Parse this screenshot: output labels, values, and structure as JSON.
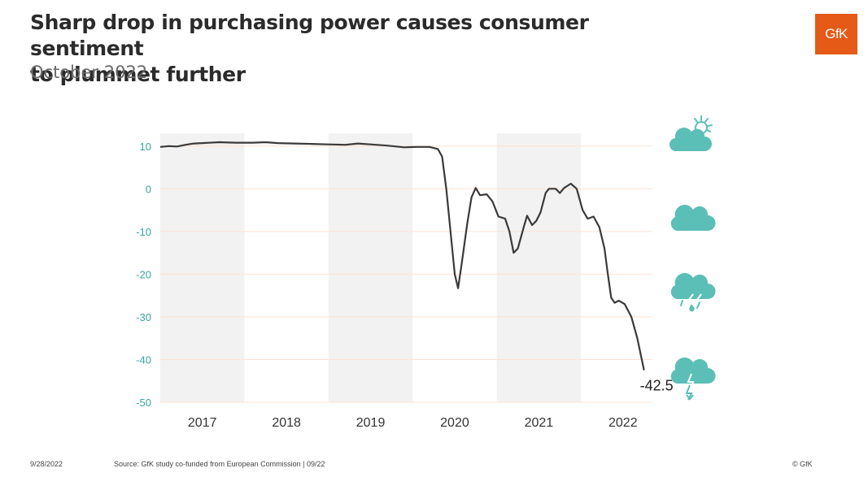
{
  "header": {
    "title_line1": "Sharp drop in purchasing power causes consumer sentiment",
    "title_line2": "to plummet further",
    "subtitle": "October 2022"
  },
  "logo": {
    "text": "GfK",
    "color": "#e55a17"
  },
  "colors": {
    "line": "#3a3a3a",
    "band": "#f2f2f2",
    "ytick": "#3aa5a0",
    "grid": "#fbe3d2",
    "icon": "#5bbfb7"
  },
  "icons": [
    "sun-cloud-icon",
    "cloud-icon",
    "rain-cloud-icon",
    "storm-cloud-icon"
  ],
  "chart_data": {
    "type": "line",
    "title": "",
    "xlabel": "",
    "ylabel": "",
    "ylim": [
      -50,
      13
    ],
    "xlim": [
      2016.5,
      2022.35
    ],
    "yticks": [
      10,
      0,
      -10,
      -20,
      -30,
      -40,
      -50
    ],
    "xticks": [
      {
        "label": "2017",
        "x": 2017.0
      },
      {
        "label": "2018",
        "x": 2018.0
      },
      {
        "label": "2019",
        "x": 2019.0
      },
      {
        "label": "2020",
        "x": 2020.0
      },
      {
        "label": "2021",
        "x": 2021.0
      },
      {
        "label": "2022",
        "x": 2022.0
      }
    ],
    "shaded_years": [
      2017,
      2019,
      2021
    ],
    "grid": "horizontal",
    "end_label": "-42.5",
    "series": [
      {
        "points": [
          [
            2016.5,
            9.8
          ],
          [
            2016.6,
            10.0
          ],
          [
            2016.7,
            9.9
          ],
          [
            2016.8,
            10.3
          ],
          [
            2016.9,
            10.6
          ],
          [
            2017.0,
            10.7
          ],
          [
            2017.2,
            10.9
          ],
          [
            2017.4,
            10.8
          ],
          [
            2017.6,
            10.8
          ],
          [
            2017.75,
            10.9
          ],
          [
            2017.9,
            10.7
          ],
          [
            2018.1,
            10.6
          ],
          [
            2018.3,
            10.5
          ],
          [
            2018.5,
            10.4
          ],
          [
            2018.7,
            10.3
          ],
          [
            2018.85,
            10.6
          ],
          [
            2019.0,
            10.4
          ],
          [
            2019.2,
            10.1
          ],
          [
            2019.4,
            9.7
          ],
          [
            2019.55,
            9.8
          ],
          [
            2019.7,
            9.8
          ],
          [
            2019.8,
            9.3
          ],
          [
            2019.85,
            7.5
          ],
          [
            2019.9,
            0.0
          ],
          [
            2019.95,
            -10.0
          ],
          [
            2020.0,
            -20.0
          ],
          [
            2020.04,
            -23.3
          ],
          [
            2020.08,
            -18.0
          ],
          [
            2020.15,
            -8.0
          ],
          [
            2020.2,
            -2.0
          ],
          [
            2020.25,
            0.2
          ],
          [
            2020.3,
            -1.5
          ],
          [
            2020.38,
            -1.3
          ],
          [
            2020.45,
            -3.0
          ],
          [
            2020.52,
            -6.5
          ],
          [
            2020.6,
            -7.0
          ],
          [
            2020.65,
            -10.0
          ],
          [
            2020.7,
            -15.0
          ],
          [
            2020.75,
            -14.0
          ],
          [
            2020.82,
            -9.0
          ],
          [
            2020.86,
            -6.3
          ],
          [
            2020.92,
            -8.5
          ],
          [
            2020.97,
            -7.5
          ],
          [
            2021.02,
            -5.5
          ],
          [
            2021.08,
            -1.0
          ],
          [
            2021.12,
            0.0
          ],
          [
            2021.2,
            0.0
          ],
          [
            2021.25,
            -1.0
          ],
          [
            2021.3,
            0.2
          ],
          [
            2021.38,
            1.2
          ],
          [
            2021.45,
            0.0
          ],
          [
            2021.52,
            -5.0
          ],
          [
            2021.58,
            -7.0
          ],
          [
            2021.65,
            -6.5
          ],
          [
            2021.72,
            -9.0
          ],
          [
            2021.78,
            -14.0
          ],
          [
            2021.82,
            -20.0
          ],
          [
            2021.86,
            -25.5
          ],
          [
            2021.9,
            -26.7
          ],
          [
            2021.95,
            -26.2
          ],
          [
            2022.02,
            -27.0
          ],
          [
            2022.1,
            -30.0
          ],
          [
            2022.17,
            -35.0
          ],
          [
            2022.25,
            -42.5
          ]
        ]
      }
    ]
  },
  "footer": {
    "date": "9/28/2022",
    "source": "Source: GfK study co-funded from European Commission | 09/22",
    "copyright": "© GfK"
  }
}
